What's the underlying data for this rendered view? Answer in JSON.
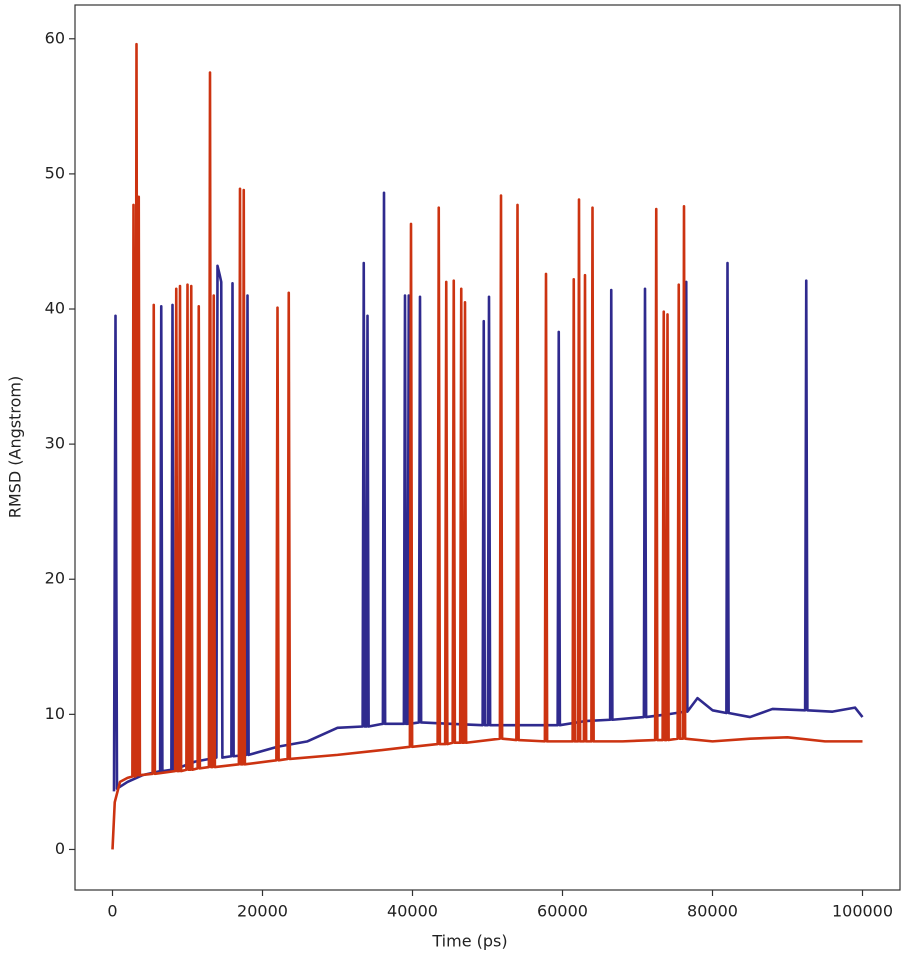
{
  "chart_data": {
    "type": "line",
    "x_label": "Time (ps)",
    "y_label": "RMSD (Angstrom)",
    "xlim": [
      -5000,
      105000
    ],
    "xticks": [
      0,
      20000,
      40000,
      60000,
      80000,
      100000
    ],
    "ylim": [
      -3,
      62.5
    ],
    "yticks": [
      0,
      10,
      20,
      30,
      40,
      50,
      60
    ],
    "grid": false,
    "series": [
      {
        "color": "#2f2a8e",
        "x": [
          200,
          400,
          600,
          2000,
          4000,
          6350,
          6500,
          6650,
          7850,
          8000,
          8150,
          11000,
          13850,
          14000,
          14300,
          14500,
          14650,
          15850,
          16000,
          16150,
          17850,
          18000,
          18150,
          22000,
          26000,
          30000,
          33350,
          33500,
          33650,
          33850,
          34000,
          34150,
          36050,
          36200,
          36350,
          38850,
          39000,
          39150,
          39350,
          39500,
          39650,
          40850,
          41000,
          41150,
          45000,
          49350,
          49500,
          49650,
          50050,
          50200,
          50350,
          55000,
          59350,
          59500,
          59650,
          63000,
          66350,
          66500,
          66650,
          70850,
          71000,
          71150,
          74000,
          76350,
          76500,
          76650,
          78000,
          80000,
          81850,
          82000,
          82150,
          85000,
          88000,
          92350,
          92500,
          92650,
          96000,
          99000,
          100000
        ],
        "values": [
          4.3,
          39.5,
          4.5,
          5,
          5.5,
          5.8,
          40.2,
          5.8,
          5.9,
          40.3,
          5.9,
          6.5,
          6.8,
          43.2,
          42.5,
          42,
          6.8,
          6.9,
          41.9,
          6.9,
          7,
          41,
          7,
          7.6,
          8,
          9,
          9.1,
          43.4,
          9.1,
          9.1,
          39.5,
          9.1,
          9.3,
          48.6,
          9.3,
          9.3,
          41,
          9.3,
          9.3,
          41,
          9.3,
          9.4,
          40.9,
          9.4,
          9.3,
          9.2,
          39.1,
          9.2,
          9.2,
          40.9,
          9.2,
          9.2,
          9.2,
          38.3,
          9.2,
          9.5,
          9.6,
          41.4,
          9.6,
          9.8,
          41.5,
          9.8,
          10,
          10.2,
          42,
          10.2,
          11.2,
          10.3,
          10.1,
          43.4,
          10.1,
          9.8,
          10.4,
          10.3,
          42.1,
          10.3,
          10.2,
          10.5,
          9.8
        ]
      },
      {
        "color": "#cc3311",
        "x": [
          0,
          300,
          1000,
          2000,
          2650,
          2800,
          2950,
          3050,
          3200,
          3350,
          3400,
          3500,
          3650,
          5350,
          5500,
          5650,
          8350,
          8500,
          8650,
          8850,
          9000,
          9150,
          9850,
          10000,
          10150,
          10350,
          10500,
          10650,
          11350,
          11500,
          11650,
          12850,
          13000,
          13150,
          13350,
          13500,
          13650,
          16850,
          17000,
          17150,
          17350,
          17500,
          17650,
          21850,
          22000,
          22150,
          23350,
          23500,
          23650,
          30000,
          35000,
          39650,
          39800,
          39950,
          43350,
          43500,
          43650,
          44350,
          44500,
          44650,
          45350,
          45500,
          45650,
          46350,
          46500,
          46650,
          46850,
          47000,
          47150,
          51650,
          51800,
          51950,
          53850,
          54000,
          54150,
          57650,
          57800,
          57950,
          61350,
          61500,
          61650,
          62050,
          62200,
          62350,
          62850,
          63000,
          63150,
          63850,
          64000,
          64150,
          68000,
          72350,
          72500,
          72650,
          73350,
          73500,
          73650,
          73850,
          74000,
          74150,
          75350,
          75500,
          75650,
          76050,
          76200,
          76350,
          80000,
          85000,
          90000,
          95000,
          100000
        ],
        "values": [
          0,
          3.5,
          5,
          5.3,
          5.4,
          47.7,
          5.4,
          5.4,
          59.6,
          5.5,
          5.5,
          48.3,
          5.5,
          5.6,
          40.3,
          5.6,
          5.8,
          41.5,
          5.8,
          5.8,
          41.7,
          5.8,
          5.9,
          41.8,
          5.9,
          5.9,
          41.7,
          5.9,
          6,
          40.2,
          6,
          6.1,
          57.5,
          6.1,
          6.1,
          41,
          6.1,
          6.3,
          48.9,
          6.3,
          6.3,
          48.8,
          6.3,
          6.6,
          40.1,
          6.6,
          6.7,
          41.2,
          6.7,
          7,
          7.3,
          7.6,
          46.3,
          7.6,
          7.8,
          47.5,
          7.8,
          7.8,
          42,
          7.8,
          7.9,
          42.1,
          7.9,
          7.9,
          41.5,
          7.9,
          7.9,
          40.5,
          7.9,
          8.2,
          48.4,
          8.2,
          8.1,
          47.7,
          8.1,
          8,
          42.6,
          8,
          8,
          42.2,
          8,
          8,
          48.1,
          8,
          8,
          42.5,
          8,
          8,
          47.5,
          8,
          8,
          8.1,
          47.4,
          8.1,
          8.1,
          39.8,
          8.1,
          8.1,
          39.6,
          8.1,
          8.2,
          41.8,
          8.2,
          8.2,
          47.6,
          8.2,
          8,
          8.2,
          8.3,
          8,
          8
        ]
      }
    ]
  }
}
